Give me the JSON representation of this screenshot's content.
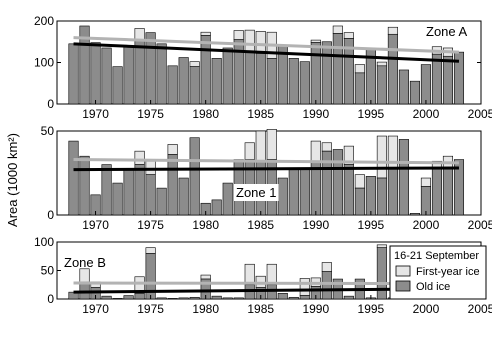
{
  "chart_data": {
    "type": "bar",
    "ylabel": "Area (1000 km²)",
    "x_range": [
      1966.5,
      2005
    ],
    "x_ticks": [
      1970,
      1975,
      1980,
      1985,
      1990,
      1995,
      2000,
      2005
    ],
    "colors": {
      "first_year": "#e6e6e6",
      "old": "#8c8c8c",
      "trend_total": "#b3b3b3",
      "trend_old": "#000000"
    },
    "years": [
      1968,
      1969,
      1970,
      1971,
      1972,
      1973,
      1974,
      1975,
      1976,
      1977,
      1978,
      1979,
      1980,
      1981,
      1982,
      1983,
      1984,
      1985,
      1986,
      1987,
      1988,
      1989,
      1990,
      1991,
      1992,
      1993,
      1994,
      1995,
      1996,
      1997,
      1998,
      1999,
      2000,
      2001,
      2002,
      2003
    ],
    "legend": {
      "title": "16-21 September",
      "items": [
        "First-year ice",
        "Old ice"
      ],
      "placement": "panel-3-top-right"
    },
    "panels": [
      {
        "name": "Zone A",
        "ylim": [
          0,
          200
        ],
        "yticks": [
          0,
          100,
          200
        ],
        "old": [
          145,
          188,
          148,
          135,
          90,
          140,
          152,
          172,
          145,
          92,
          112,
          90,
          165,
          110,
          135,
          155,
          125,
          122,
          110,
          142,
          110,
          102,
          148,
          150,
          170,
          158,
          75,
          132,
          92,
          168,
          82,
          55,
          95,
          120,
          115,
          125
        ],
        "first_year": [
          0,
          0,
          0,
          0,
          0,
          0,
          30,
          0,
          0,
          0,
          0,
          12,
          8,
          0,
          0,
          22,
          53,
          53,
          63,
          0,
          0,
          0,
          6,
          0,
          18,
          14,
          20,
          0,
          9,
          17,
          0,
          0,
          0,
          18,
          20,
          0
        ],
        "trend_total": [
          160,
          125
        ],
        "trend_old": [
          145,
          103
        ]
      },
      {
        "name": "Zone 1",
        "ylim": [
          0,
          50
        ],
        "yticks": [
          0,
          50
        ],
        "old": [
          44,
          35,
          12,
          30,
          19,
          27,
          30,
          24,
          16,
          36,
          22,
          46,
          7,
          9,
          19,
          33,
          33,
          32,
          33,
          22,
          28,
          28,
          32,
          38,
          39,
          30,
          16,
          23,
          22,
          28,
          45,
          1,
          17,
          28,
          28,
          33
        ],
        "first_year": [
          0,
          0,
          0,
          0,
          0,
          0,
          8,
          8,
          0,
          6,
          0,
          0,
          0,
          0,
          0,
          0,
          10,
          18,
          18,
          0,
          0,
          0,
          12,
          5,
          0,
          11,
          8,
          0,
          25,
          19,
          0,
          0,
          5,
          4,
          7,
          0
        ],
        "trend_total": [
          33,
          31
        ],
        "trend_old": [
          27,
          28
        ]
      },
      {
        "name": "Zone B",
        "ylim": [
          0,
          100
        ],
        "yticks": [
          0,
          50,
          100
        ],
        "old": [
          12,
          30,
          20,
          5,
          1,
          6,
          10,
          80,
          2,
          1,
          2,
          3,
          35,
          5,
          2,
          2,
          25,
          20,
          25,
          10,
          3,
          6,
          22,
          48,
          35,
          5,
          35,
          2,
          90,
          2,
          1,
          2,
          10,
          3,
          10,
          25
        ],
        "first_year": [
          0,
          23,
          10,
          0,
          0,
          0,
          29,
          10,
          0,
          0,
          0,
          0,
          7,
          0,
          0,
          0,
          36,
          20,
          36,
          0,
          0,
          30,
          15,
          16,
          0,
          0,
          0,
          0,
          5,
          0,
          0,
          0,
          0,
          0,
          12,
          0
        ],
        "trend_total": [
          28,
          27
        ],
        "trend_old": [
          12,
          18
        ]
      }
    ]
  }
}
